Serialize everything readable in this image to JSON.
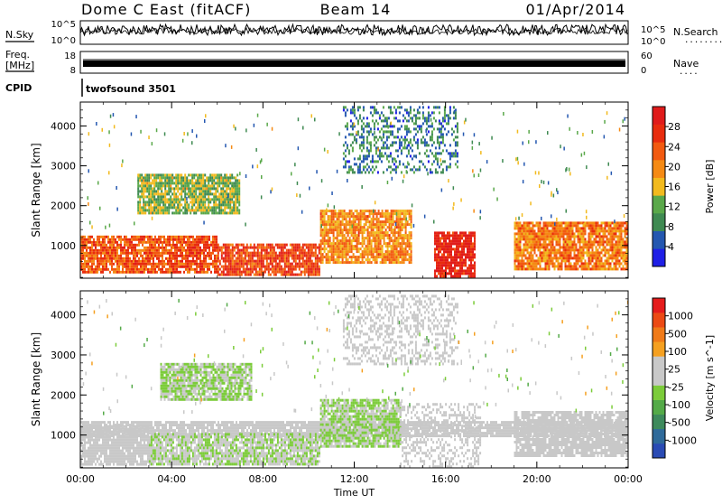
{
  "header": {
    "station": "Dome C East (fitACF)",
    "beam": "Beam 14",
    "date": "01/Apr/2014"
  },
  "panel_labels": {
    "nsky": "N.Sky",
    "nsearch": "N.Search",
    "nsearch_marker": "........",
    "freq_top": "Freq.",
    "freq_unit": "[MHz]",
    "nave": "Nave",
    "nave_marker": "....",
    "cpid": "CPID",
    "cpid_value": "twofsound 3501"
  },
  "status_axes": {
    "noise_left_top": "10^5",
    "noise_left_bottom": "10^0",
    "noise_right_top": "10^5",
    "noise_right_bottom": "10^0",
    "freq_left_top": "18",
    "freq_left_bottom": "8",
    "nave_right_top": "60",
    "nave_right_bottom": "0"
  },
  "colors": {
    "power_scale": [
      "#1f1fe6",
      "#2457b0",
      "#3f8a52",
      "#5aa84a",
      "#f2ba1e",
      "#f58a14",
      "#f25a10",
      "#e82c0e",
      "#e01b1b"
    ],
    "velocity_scale": [
      "#2a4bb4",
      "#2f6a9a",
      "#3e8a5c",
      "#54aa48",
      "#7ccc3a",
      "#c8c8c8",
      "#c8c8c8",
      "#f5a020",
      "#f07a18",
      "#ec4a14",
      "#e51c1c"
    ]
  },
  "chart_data": [
    {
      "type": "heatmap",
      "title": "",
      "parameter": "Power",
      "colorbar_label": "Power [dB]",
      "colorbar_ticks": [
        "28",
        "24",
        "20",
        "16",
        "12",
        "8",
        "4"
      ],
      "colorbar_range": [
        0,
        32
      ],
      "xlabel": "",
      "ylabel": "Slant Range [km]",
      "xlim": [
        "00:00",
        "24:00"
      ],
      "ylim": [
        180,
        4600
      ],
      "x_ticks": [
        "00:00",
        "04:00",
        "08:00",
        "12:00",
        "16:00",
        "20:00",
        "00:00"
      ],
      "y_ticks": [
        1000,
        2000,
        3000,
        4000
      ],
      "bands": [
        {
          "t0": 0.0,
          "t1": 6.0,
          "r0": 300,
          "r1": 1250,
          "value": 24
        },
        {
          "t0": 6.0,
          "t1": 10.5,
          "r0": 300,
          "r1": 1050,
          "value": 25
        },
        {
          "t0": 10.5,
          "t1": 14.5,
          "r0": 600,
          "r1": 1900,
          "value": 20
        },
        {
          "t0": 15.5,
          "t1": 17.3,
          "r0": 200,
          "r1": 1350,
          "value": 29
        },
        {
          "t0": 19.0,
          "t1": 24.0,
          "r0": 400,
          "r1": 1600,
          "value": 21
        },
        {
          "t0": 2.5,
          "t1": 7.0,
          "r0": 1800,
          "r1": 2800,
          "value": 13
        },
        {
          "t0": 11.5,
          "t1": 16.5,
          "r0": 2800,
          "r1": 4500,
          "value": 8
        }
      ]
    },
    {
      "type": "heatmap",
      "title": "",
      "parameter": "Velocity",
      "colorbar_label": "Velocity [m s^-1]",
      "colorbar_ticks": [
        "1000",
        "500",
        "100",
        "25",
        "-25",
        "-100",
        "-500",
        "-1000"
      ],
      "colorbar_range": [
        -2000,
        2000
      ],
      "xlabel": "Time UT",
      "ylabel": "Slant Range [km]",
      "xlim": [
        "00:00",
        "24:00"
      ],
      "ylim": [
        180,
        4600
      ],
      "x_ticks": [
        "00:00",
        "04:00",
        "08:00",
        "12:00",
        "16:00",
        "20:00",
        "00:00"
      ],
      "y_ticks": [
        1000,
        2000,
        3000,
        4000
      ],
      "bands": [
        {
          "t0": 0.0,
          "t1": 24.0,
          "r0": 950,
          "r1": 1350,
          "value": 0
        },
        {
          "t0": 0.0,
          "t1": 3.0,
          "r0": 300,
          "r1": 1250,
          "value": 180
        },
        {
          "t0": 3.0,
          "t1": 10.5,
          "r0": 300,
          "r1": 1050,
          "value": -150
        },
        {
          "t0": 10.5,
          "t1": 14.0,
          "r0": 700,
          "r1": 1900,
          "value": -200
        },
        {
          "t0": 14.0,
          "t1": 17.5,
          "r0": 200,
          "r1": 1800,
          "value": 250
        },
        {
          "t0": 19.0,
          "t1": 24.0,
          "r0": 500,
          "r1": 1600,
          "value": 80
        },
        {
          "t0": 3.5,
          "t1": 7.5,
          "r0": 1900,
          "r1": 2800,
          "value": -180
        },
        {
          "t0": 11.5,
          "t1": 16.5,
          "r0": 2800,
          "r1": 4500,
          "value": 120
        }
      ]
    }
  ]
}
